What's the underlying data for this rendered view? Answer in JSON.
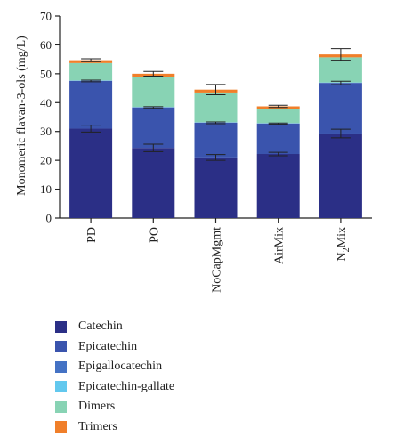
{
  "chart_data": {
    "type": "bar",
    "stacked": true,
    "ylabel": "Monomeric flavan-3-ols (mg/L)",
    "xlabel": "",
    "ylim": [
      0,
      70
    ],
    "yticks": [
      0,
      10,
      20,
      30,
      40,
      50,
      60,
      70
    ],
    "categories": [
      "PD",
      "PO",
      "NoCapMgmt",
      "AirMix",
      "N2Mix"
    ],
    "category_display": [
      {
        "main": "PD",
        "sub": ""
      },
      {
        "main": "PO",
        "sub": ""
      },
      {
        "main": "NoCapMgmt",
        "sub": ""
      },
      {
        "main": "AirMix",
        "sub": ""
      },
      {
        "main": "N",
        "sub": "2",
        "tail": "Mix"
      }
    ],
    "series": [
      {
        "name": "Catechin",
        "color": "#2b2f86",
        "values": [
          31.0,
          24.3,
          21.0,
          22.2,
          29.3
        ]
      },
      {
        "name": "Epicatechin",
        "color": "#3a54ad",
        "values": [
          16.5,
          14.0,
          12.0,
          10.5,
          17.5
        ]
      },
      {
        "name": "Epigallocatechin",
        "color": "#4472c4",
        "values": [
          0.1,
          0.1,
          0.1,
          0.1,
          0.1
        ]
      },
      {
        "name": "Epicatechin-gallate",
        "color": "#62c8ee",
        "values": [
          0.1,
          0.1,
          0.1,
          0.1,
          0.1
        ]
      },
      {
        "name": "Dimers",
        "color": "#88d3b4",
        "values": [
          6.0,
          10.5,
          10.3,
          5.0,
          8.7
        ]
      },
      {
        "name": "Trimers",
        "color": "#f07f2a",
        "values": [
          1.0,
          1.0,
          1.0,
          0.8,
          1.0
        ]
      }
    ],
    "error_bars": {
      "Catechin": [
        1.2,
        1.3,
        1.0,
        0.6,
        1.5
      ],
      "Epicatechin": [
        0.3,
        0.3,
        0.3,
        0.2,
        0.6
      ],
      "Trimers": [
        0.5,
        0.8,
        1.8,
        0.4,
        2.0
      ]
    },
    "legend_position": "bottom",
    "grid": false
  }
}
